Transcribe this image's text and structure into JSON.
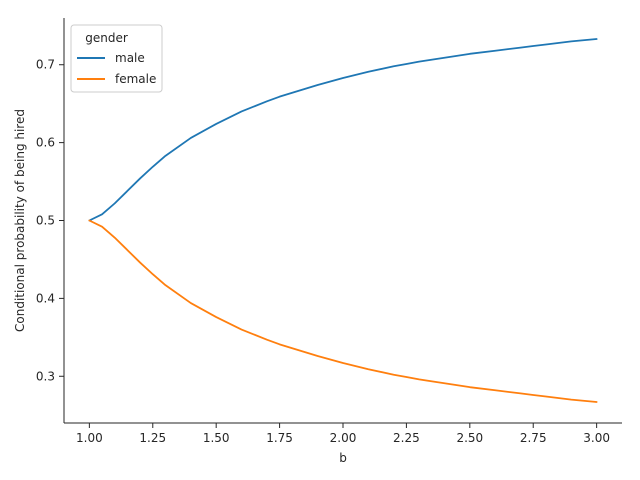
{
  "chart_data": {
    "type": "line",
    "xlabel": "b",
    "ylabel": "Conditional probability of being hired",
    "xlim": [
      0.9,
      3.1
    ],
    "ylim": [
      0.24,
      0.76
    ],
    "xticks": [
      1.0,
      1.25,
      1.5,
      1.75,
      2.0,
      2.25,
      2.5,
      2.75,
      3.0
    ],
    "xtick_labels": [
      "1.00",
      "1.25",
      "1.50",
      "1.75",
      "2.00",
      "2.25",
      "2.50",
      "2.75",
      "3.00"
    ],
    "yticks": [
      0.3,
      0.4,
      0.5,
      0.6,
      0.7
    ],
    "ytick_labels": [
      "0.3",
      "0.4",
      "0.5",
      "0.6",
      "0.7"
    ],
    "legend": {
      "title": "gender",
      "placement": "top-left"
    },
    "grid": false,
    "x": [
      1.0,
      1.05,
      1.1,
      1.15,
      1.2,
      1.25,
      1.3,
      1.4,
      1.5,
      1.6,
      1.7,
      1.75,
      1.8,
      1.9,
      2.0,
      2.1,
      2.2,
      2.25,
      2.3,
      2.4,
      2.5,
      2.6,
      2.7,
      2.75,
      2.8,
      2.9,
      3.0
    ],
    "series": [
      {
        "name": "male",
        "color": "#1f77b4",
        "values": [
          0.5,
          0.508,
          0.522,
          0.538,
          0.554,
          0.569,
          0.583,
          0.606,
          0.624,
          0.64,
          0.653,
          0.659,
          0.664,
          0.674,
          0.683,
          0.691,
          0.698,
          0.701,
          0.704,
          0.709,
          0.714,
          0.718,
          0.722,
          0.724,
          0.726,
          0.73,
          0.733
        ]
      },
      {
        "name": "female",
        "color": "#ff7f0e",
        "values": [
          0.5,
          0.492,
          0.478,
          0.462,
          0.446,
          0.431,
          0.417,
          0.394,
          0.376,
          0.36,
          0.347,
          0.341,
          0.336,
          0.326,
          0.317,
          0.309,
          0.302,
          0.299,
          0.296,
          0.291,
          0.286,
          0.282,
          0.278,
          0.276,
          0.274,
          0.27,
          0.267
        ]
      }
    ]
  }
}
